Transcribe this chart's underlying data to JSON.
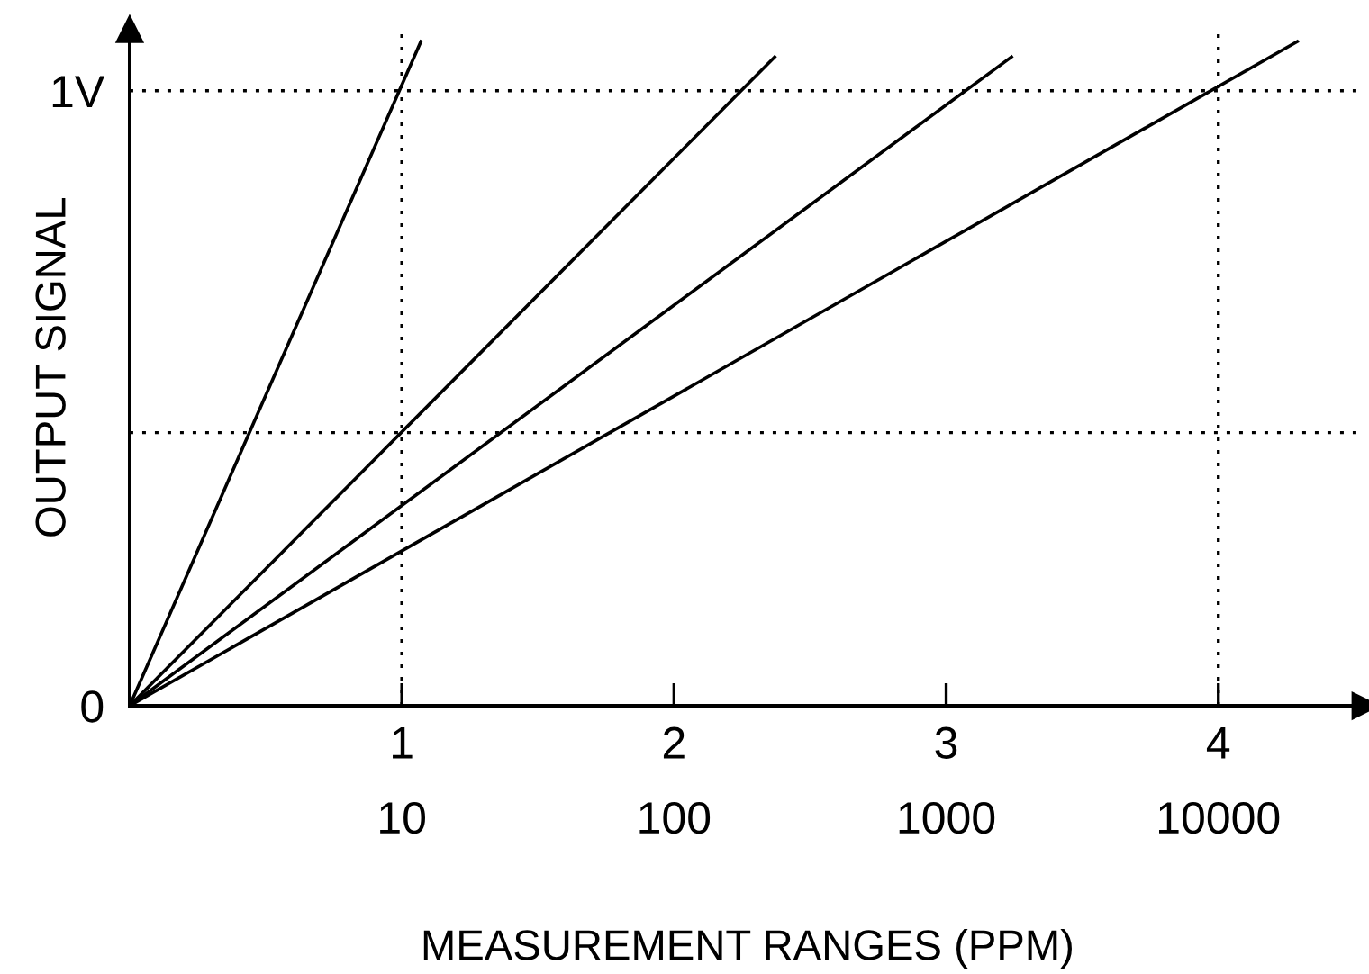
{
  "chart_data": {
    "type": "line",
    "xlabel": "MEASUREMENT RANGES (PPM)",
    "ylabel": "OUTPUT SIGNAL",
    "series": [
      {
        "color": "#000000",
        "x": [
          0,
          1.07
        ],
        "values": [
          0,
          1.08
        ]
      },
      {
        "color": "#000000",
        "x": [
          0,
          2.37
        ],
        "values": [
          0,
          1.055
        ]
      },
      {
        "color": "#000000",
        "x": [
          0,
          3.24
        ],
        "values": [
          0,
          1.055
        ]
      },
      {
        "color": "#000000",
        "x": [
          0,
          4.29
        ],
        "values": [
          0,
          1.08
        ]
      }
    ],
    "xlim": [
      0,
      4.54
    ],
    "ylim": [
      0,
      1.1
    ],
    "xticks": [
      1,
      2,
      3,
      4
    ],
    "x2lim": [
      1,
      34674
    ],
    "x2ticks": [
      10,
      100,
      1000,
      10000
    ],
    "log": "x2",
    "yticks": [
      0,
      {
        "value": 1,
        "label": "1V"
      }
    ],
    "ref_lines": [
      {
        "axis": "y",
        "value": 1,
        "color": "#000000",
        "line_style": "dotted"
      },
      {
        "axis": "y",
        "value": 0.444,
        "color": "#000000",
        "line_style": "dotted"
      },
      {
        "axis": "x",
        "value": 1,
        "color": "#000000",
        "line_style": "dotted"
      },
      {
        "axis": "x",
        "value": 4,
        "color": "#000000",
        "line_style": "dotted"
      }
    ],
    "grid": false,
    "legend": false,
    "marker": "none",
    "line_style": "solid"
  }
}
